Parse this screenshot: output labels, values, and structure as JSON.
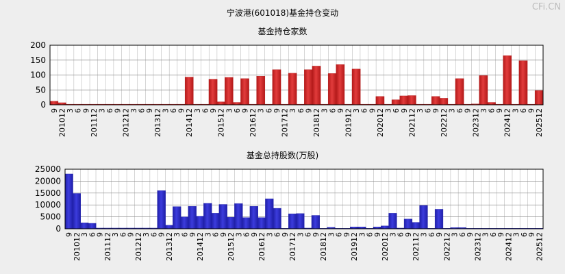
{
  "header": {
    "title": "宁波港(601018)基金持仓变动",
    "watermark": "CFi.CN"
  },
  "colors": {
    "bar_red": "#e23c3c",
    "bar_red_dark": "#b31919",
    "bar_blue": "#3c3cdd",
    "bar_blue_dark": "#1f1fa8",
    "plot_bg": "#ffffff",
    "grid": "#bbbbbb"
  },
  "chart_data": [
    {
      "type": "bar",
      "title": "基金持仓家数",
      "ylim": [
        0,
        200
      ],
      "yticks": [
        0,
        50,
        100,
        150,
        200
      ],
      "categories": [
        "201009",
        "201012",
        "201103",
        "201106",
        "201109",
        "201112",
        "201203",
        "201206",
        "201209",
        "201212",
        "201303",
        "201306",
        "201309",
        "201312",
        "201403",
        "201406",
        "201409",
        "201412",
        "201503",
        "201506",
        "201509",
        "201512",
        "201603",
        "201606",
        "201609",
        "201612",
        "201703",
        "201706",
        "201709",
        "201712",
        "201803",
        "201806",
        "201809",
        "201812",
        "201903",
        "201906",
        "201909",
        "201912",
        "202003",
        "202006",
        "202009",
        "202012",
        "202103",
        "202106",
        "202109",
        "202112",
        "202203",
        "202206",
        "202209",
        "202212",
        "202303",
        "202306",
        "202309",
        "202312",
        "202403",
        "202406",
        "202409",
        "202412",
        "202503",
        "202506",
        "202509",
        "202512"
      ],
      "tick_labels": [
        "9",
        "201012",
        "3",
        "6",
        "9",
        "201112",
        "3",
        "6",
        "9",
        "201212",
        "3",
        "6",
        "9",
        "201312",
        "3",
        "6",
        "9",
        "201412",
        "3",
        "6",
        "9",
        "201512",
        "3",
        "6",
        "9",
        "201612",
        "3",
        "6",
        "9",
        "201712",
        "3",
        "6",
        "9",
        "201812",
        "3",
        "6",
        "9",
        "201912",
        "3",
        "6",
        "9",
        "202012",
        "3",
        "6",
        "9",
        "202112",
        "3",
        "6",
        "9",
        "202212",
        "3",
        "6",
        "9",
        "202312",
        "3",
        "6",
        "9",
        "202412",
        "3",
        "6",
        "9",
        "202512"
      ],
      "values": [
        12,
        7,
        2,
        2,
        2,
        2,
        2,
        2,
        2,
        2,
        2,
        2,
        2,
        2,
        2,
        2,
        2,
        93,
        2,
        2,
        86,
        10,
        92,
        8,
        88,
        2,
        96,
        2,
        118,
        2,
        106,
        2,
        118,
        130,
        2,
        105,
        135,
        2,
        120,
        2,
        2,
        28,
        2,
        17,
        30,
        31,
        2,
        2,
        28,
        22,
        2,
        88,
        2,
        3,
        98,
        8,
        2,
        165,
        2,
        148,
        2,
        48
      ]
    },
    {
      "type": "bar",
      "title": "基金总持股数(万股)",
      "ylim": [
        0,
        25000
      ],
      "yticks": [
        0,
        5000,
        10000,
        15000,
        20000,
        25000
      ],
      "categories": [
        "201009",
        "201012",
        "201103",
        "201106",
        "201109",
        "201112",
        "201203",
        "201206",
        "201209",
        "201212",
        "201303",
        "201306",
        "201309",
        "201312",
        "201403",
        "201406",
        "201409",
        "201412",
        "201503",
        "201506",
        "201509",
        "201512",
        "201603",
        "201606",
        "201609",
        "201612",
        "201703",
        "201706",
        "201709",
        "201712",
        "201803",
        "201806",
        "201809",
        "201812",
        "201903",
        "201906",
        "201909",
        "201912",
        "202003",
        "202006",
        "202009",
        "202012",
        "202103",
        "202106",
        "202109",
        "202112",
        "202203",
        "202206",
        "202209",
        "202212",
        "202303",
        "202306",
        "202309",
        "202312",
        "202403",
        "202406",
        "202409",
        "202412",
        "202503",
        "202506",
        "202509",
        "202512"
      ],
      "tick_labels": [
        "9",
        "201012",
        "3",
        "6",
        "9",
        "201112",
        "3",
        "6",
        "9",
        "201212",
        "3",
        "6",
        "9",
        "201312",
        "3",
        "6",
        "9",
        "201412",
        "3",
        "6",
        "9",
        "201512",
        "3",
        "6",
        "9",
        "201612",
        "3",
        "6",
        "9",
        "201712",
        "3",
        "6",
        "9",
        "201812",
        "3",
        "6",
        "9",
        "201912",
        "3",
        "6",
        "9",
        "202012",
        "3",
        "6",
        "9",
        "202112",
        "3",
        "6",
        "9",
        "202212",
        "3",
        "6",
        "9",
        "202312",
        "3",
        "6",
        "9",
        "202412",
        "3",
        "6",
        "9",
        "202512"
      ],
      "values": [
        23000,
        14800,
        2500,
        2300,
        300,
        300,
        300,
        300,
        300,
        300,
        300,
        300,
        16000,
        1500,
        9300,
        5000,
        9400,
        5300,
        10700,
        6500,
        10200,
        4800,
        10600,
        4700,
        9400,
        4700,
        12600,
        8600,
        200,
        6300,
        6400,
        300,
        5600,
        200,
        600,
        200,
        200,
        800,
        800,
        200,
        800,
        1200,
        6500,
        300,
        4100,
        2700,
        9800,
        200,
        8200,
        200,
        500,
        500,
        200,
        200,
        200,
        200,
        200,
        200,
        200,
        200,
        200,
        200
      ]
    }
  ]
}
